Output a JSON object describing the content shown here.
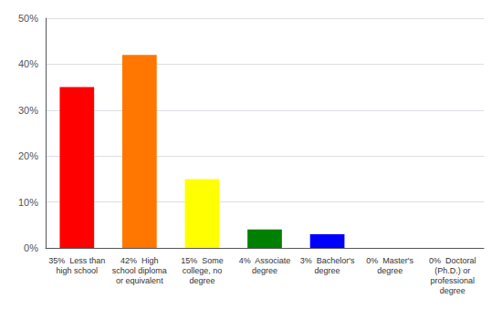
{
  "chart_data": {
    "type": "bar",
    "categories": [
      "35%  Less than\nhigh school",
      "42%  High\nschool diploma\nor equivalent",
      "15%  Some\ncollege, no\ndegree",
      "4%  Associate\ndegree",
      "3%  Bachelor's\ndegree",
      "0%  Master's\ndegree",
      "0%  Doctoral\n(Ph.D.) or\nprofessional\ndegree"
    ],
    "values": [
      35,
      42,
      15,
      4,
      3,
      0,
      0
    ],
    "colors": [
      "#ff0000",
      "#ff7700",
      "#ffff00",
      "#008000",
      "#0000ff",
      "#8800cc",
      "#ff00ff"
    ],
    "ylim": [
      0,
      50
    ],
    "yticks": [
      {
        "value": 0,
        "label": "0%"
      },
      {
        "value": 10,
        "label": "10%"
      },
      {
        "value": 20,
        "label": "20%"
      },
      {
        "value": 30,
        "label": "30%"
      },
      {
        "value": 40,
        "label": "40%"
      },
      {
        "value": 50,
        "label": "50%"
      }
    ],
    "grid": true
  }
}
